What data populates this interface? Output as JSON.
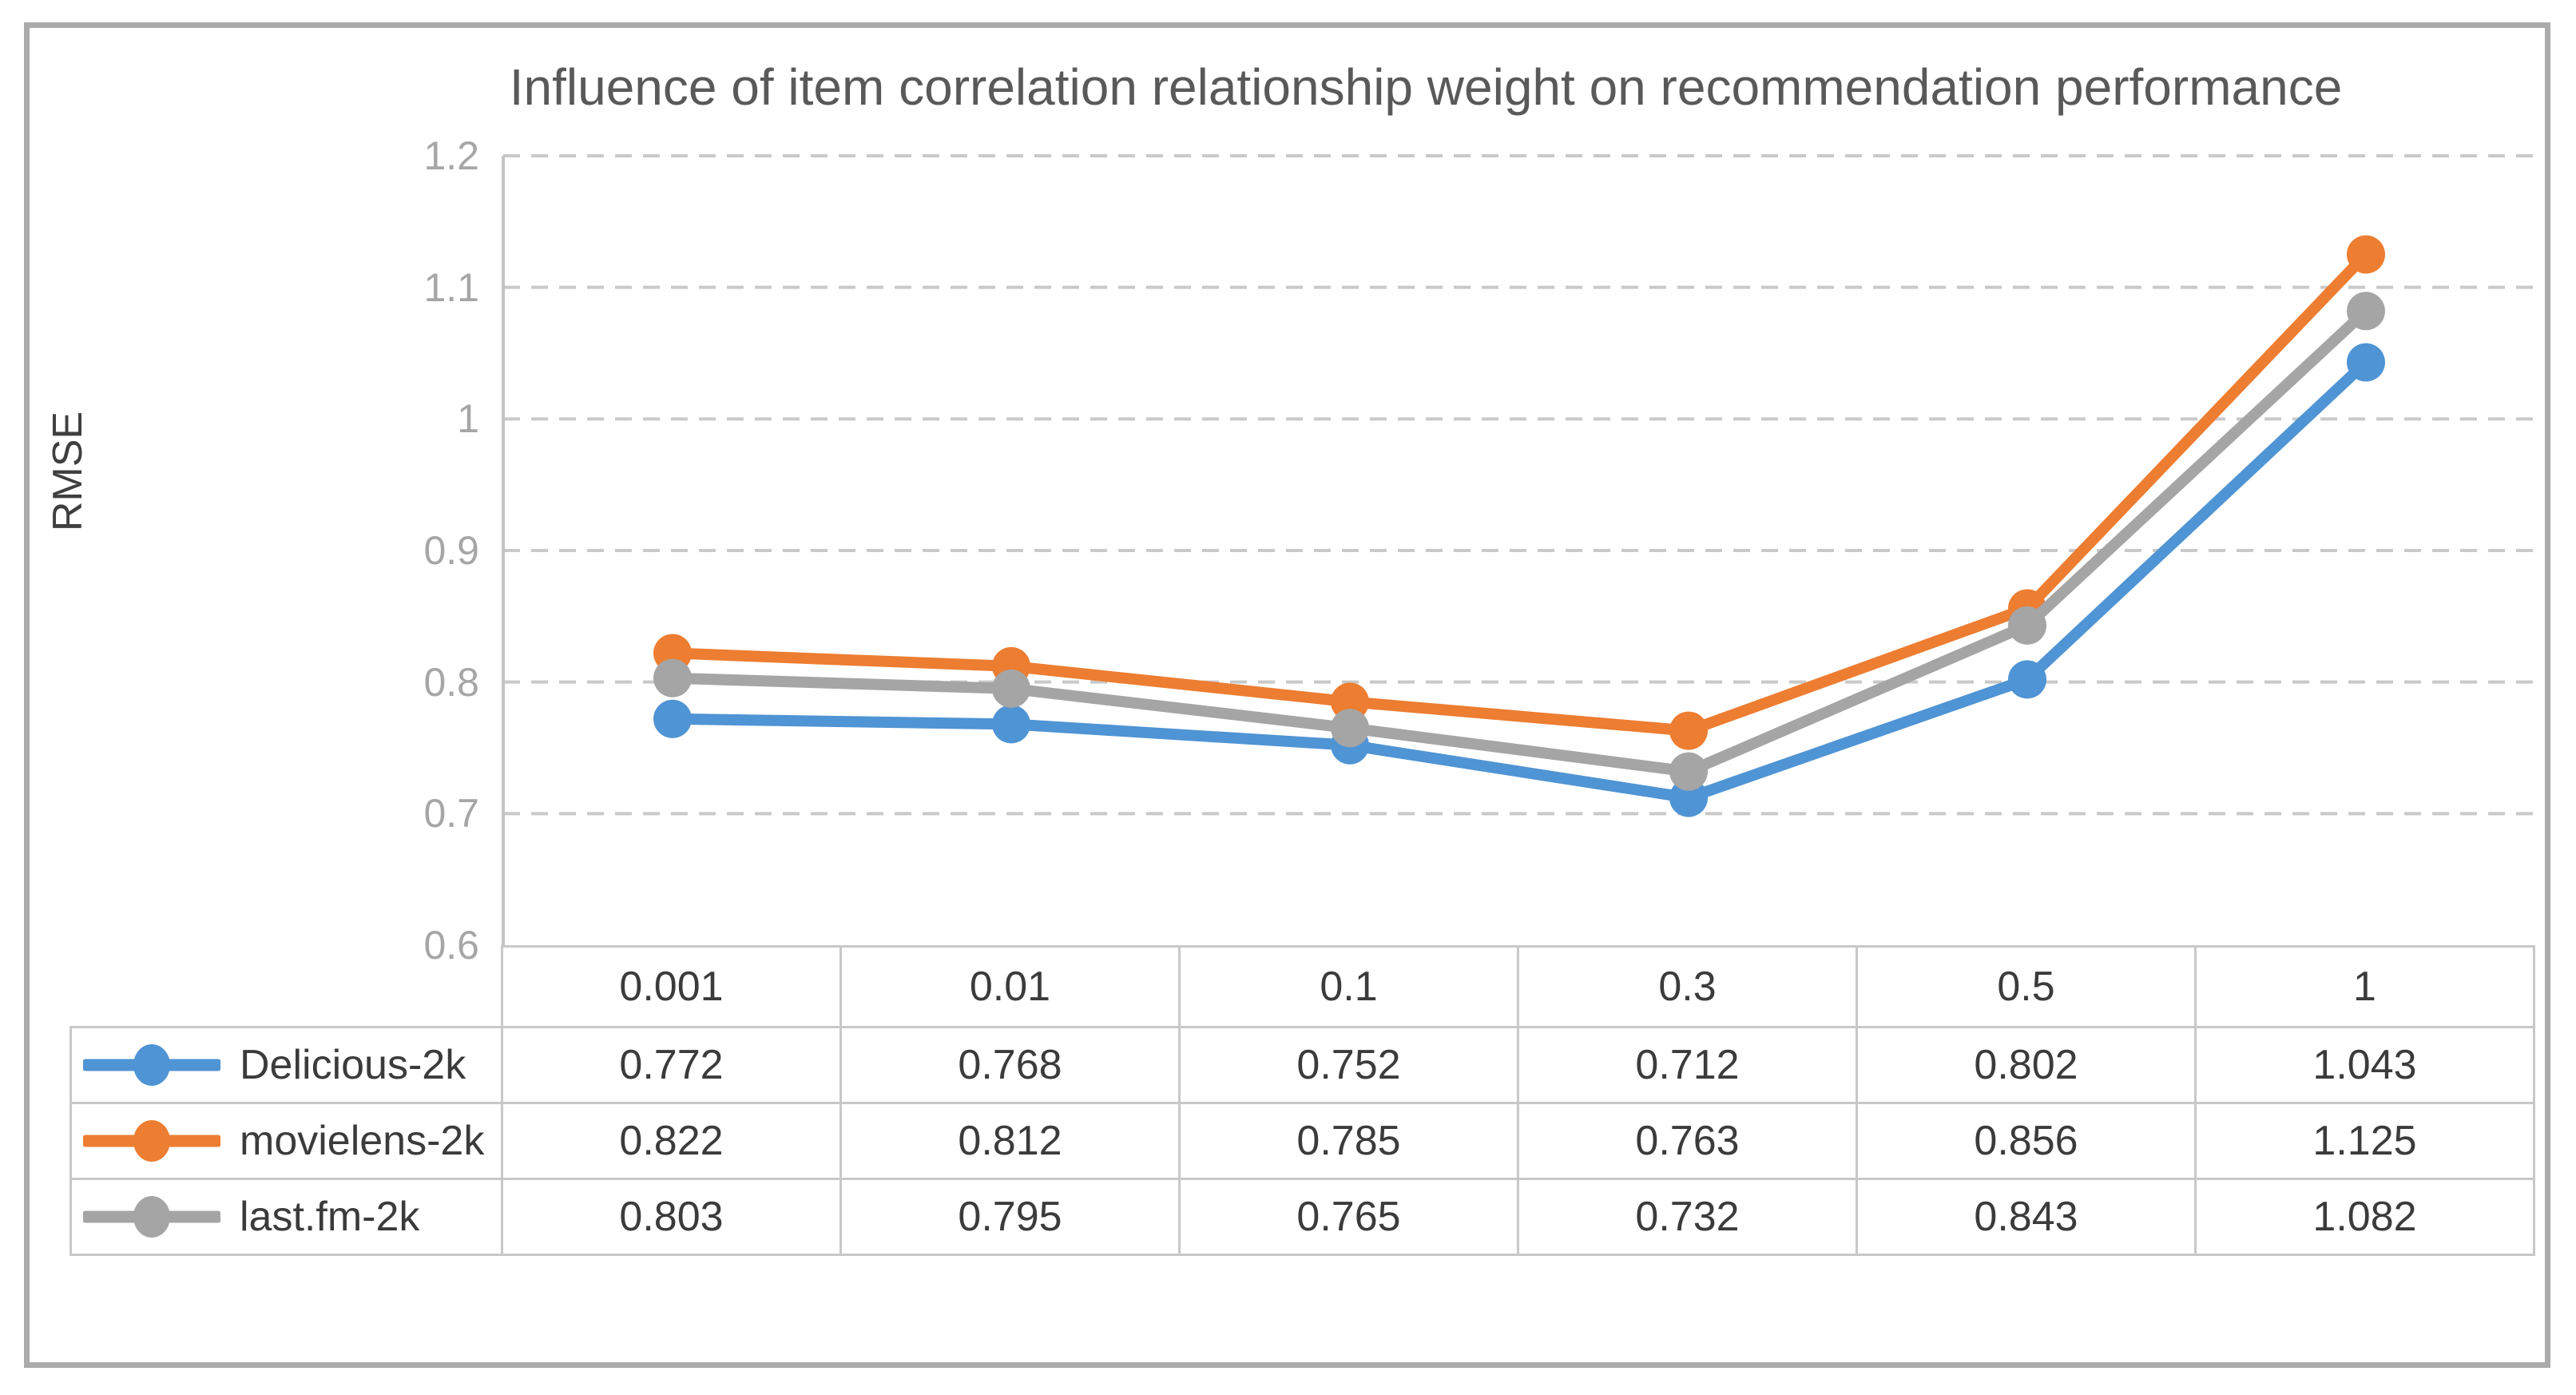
{
  "chart_data": {
    "type": "line",
    "title": "Influence of item correlation relationship weight on recommendation performance",
    "xlabel": "",
    "ylabel": "RMSE",
    "categories": [
      "0.001",
      "0.01",
      "0.1",
      "0.3",
      "0.5",
      "1"
    ],
    "series": [
      {
        "name": "Delicious-2k",
        "color": "#4F94D4",
        "values": [
          0.772,
          0.768,
          0.752,
          0.712,
          0.802,
          1.043
        ]
      },
      {
        "name": "movielens-2k",
        "color": "#ED7D31",
        "values": [
          0.822,
          0.812,
          0.785,
          0.763,
          0.856,
          1.125
        ]
      },
      {
        "name": "last.fm-2k",
        "color": "#A5A5A5",
        "values": [
          0.803,
          0.795,
          0.765,
          0.732,
          0.843,
          1.082
        ]
      }
    ],
    "ylim": [
      0.6,
      1.2
    ],
    "yticks": [
      "1.2",
      "1.1",
      "1",
      "0.9",
      "0.8",
      "0.7",
      "0.6"
    ],
    "grid": "horizontal-dashed",
    "legend_position": "table-left-column",
    "colors": {
      "grid_line": "#C9C9C9",
      "axis_line": "#C3C3C3",
      "tick_label": "#A6A6A6",
      "title_text": "#595959",
      "table_text": "#3B3B3B",
      "table_border": "#C8C8C8",
      "outer_border": "#ABABAB"
    }
  }
}
